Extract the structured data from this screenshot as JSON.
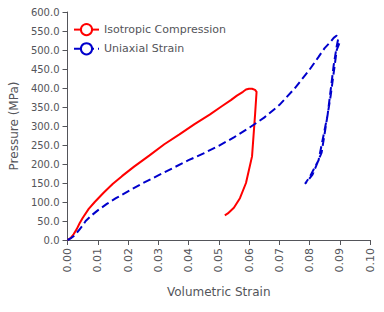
{
  "chart_data": {
    "type": "line",
    "xlabel": "Volumetric Strain",
    "ylabel": "Pressure (MPa)",
    "xlim": [
      0.0,
      0.1
    ],
    "ylim": [
      0.0,
      600.0
    ],
    "xticks": [
      {
        "value": 0.0,
        "label": "0.00"
      },
      0.01,
      0.02,
      0.03,
      0.04,
      0.05,
      0.06,
      0.07,
      0.08,
      0.09,
      {
        "value": 0.1,
        "label": "0.10"
      }
    ],
    "yticks": [
      {
        "value": 0.0,
        "label": "0.0"
      },
      {
        "value": 50.0,
        "label": "50.0"
      },
      {
        "value": 100.0,
        "label": "100.0"
      },
      {
        "value": 150.0,
        "label": "150.0"
      },
      {
        "value": 200.0,
        "label": "200.0"
      },
      {
        "value": 250.0,
        "label": "250.0"
      },
      {
        "value": 300.0,
        "label": "300.0"
      },
      {
        "value": 350.0,
        "label": "350.0"
      },
      {
        "value": 400.0,
        "label": "400.0"
      },
      {
        "value": 450.0,
        "label": "450.0"
      },
      {
        "value": 500.0,
        "label": "500.0"
      },
      {
        "value": 550.0,
        "label": "550.0"
      },
      {
        "value": 600.0,
        "label": "600.0"
      }
    ],
    "grid": false,
    "legend": "upper left",
    "series": [
      {
        "name": "Isotropic Compression",
        "color": "#ff0000",
        "line_style": "solid",
        "x": [
          0.0,
          0.001,
          0.002,
          0.003,
          0.004,
          0.005,
          0.007,
          0.009,
          0.012,
          0.015,
          0.018,
          0.022,
          0.027,
          0.032,
          0.037,
          0.042,
          0.047,
          0.051,
          0.054,
          0.056,
          0.058,
          0.059,
          0.06,
          0.061,
          0.062,
          0.0625,
          0.062,
          0.061,
          0.059,
          0.057,
          0.055,
          0.053,
          0.052
        ],
        "values": [
          0.0,
          5.0,
          15.0,
          28.0,
          44.0,
          58.0,
          82.0,
          100.0,
          125.0,
          148.0,
          168.0,
          193.0,
          222.0,
          252.0,
          278.0,
          305.0,
          330.0,
          352.0,
          368.0,
          380.0,
          390.0,
          396.0,
          398.0,
          398.0,
          395.0,
          390.0,
          330.0,
          220.0,
          150.0,
          110.0,
          85.0,
          70.0,
          65.0
        ]
      },
      {
        "name": "Uniaxial Strain",
        "color": "#0000cc",
        "line_style": "dashed",
        "x": [
          0.0,
          0.001,
          0.002,
          0.003,
          0.004,
          0.005,
          0.006,
          0.008,
          0.01,
          0.013,
          0.016,
          0.02,
          0.025,
          0.03,
          0.035,
          0.04,
          0.045,
          0.05,
          0.055,
          0.06,
          0.065,
          0.07,
          0.075,
          0.08,
          0.083,
          0.085,
          0.087,
          0.088,
          0.089,
          0.0895,
          0.089,
          0.088,
          0.086,
          0.083,
          0.08,
          0.0785,
          0.079,
          0.081,
          0.084,
          0.087,
          0.089,
          0.09
        ],
        "values": [
          0.0,
          4.0,
          10.0,
          18.0,
          28.0,
          38.0,
          50.0,
          65.0,
          78.0,
          95.0,
          110.0,
          128.0,
          150.0,
          170.0,
          190.0,
          210.0,
          228.0,
          248.0,
          270.0,
          295.0,
          322.0,
          355.0,
          398.0,
          448.0,
          482.0,
          505.0,
          522.0,
          532.0,
          538.0,
          530.0,
          510.0,
          460.0,
          330.0,
          210.0,
          165.0,
          148.0,
          152.0,
          172.0,
          230.0,
          380.0,
          500.0,
          520.0
        ]
      }
    ]
  }
}
